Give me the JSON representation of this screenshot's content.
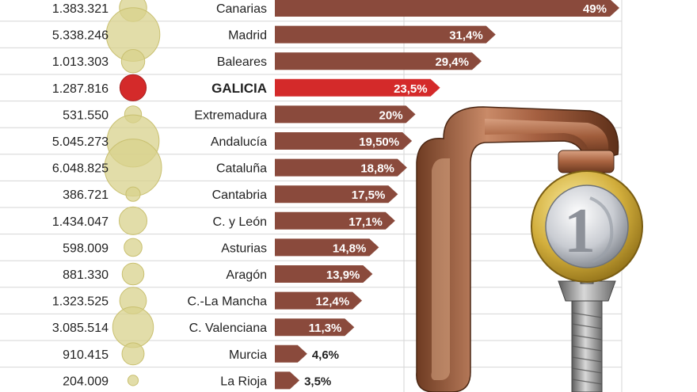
{
  "colors": {
    "bar": "#8a4a3c",
    "highlight": "#d42a2a",
    "bubble": "#d8d28c",
    "bubble_stroke": "#c9c070",
    "grid": "#d6d6d6"
  },
  "illustration": {
    "clamp_icon": "c-clamp-icon",
    "coin_icon": "euro-coin-icon",
    "coin_text": "1"
  },
  "chart_data": {
    "type": "bar",
    "orientation": "horizontal",
    "title": "",
    "xlabel": "",
    "ylabel": "",
    "xlim": [
      0,
      49
    ],
    "grid": true,
    "highlight": "GALICIA",
    "rows": [
      {
        "region": "Canarias",
        "population": "1.383.321",
        "value": 49,
        "label": "49%"
      },
      {
        "region": "Madrid",
        "population": "5.338.246",
        "value": 31.4,
        "label": "31,4%"
      },
      {
        "region": "Baleares",
        "population": "1.013.303",
        "value": 29.4,
        "label": "29,4%"
      },
      {
        "region": "GALICIA",
        "population": "1.287.816",
        "value": 23.5,
        "label": "23,5%"
      },
      {
        "region": "Extremadura",
        "population": "531.550",
        "value": 20,
        "label": "20%"
      },
      {
        "region": "Andalucía",
        "population": "5.045.273",
        "value": 19.5,
        "label": "19,50%"
      },
      {
        "region": "Cataluña",
        "population": "6.048.825",
        "value": 18.8,
        "label": "18,8%"
      },
      {
        "region": "Cantabria",
        "population": "386.721",
        "value": 17.5,
        "label": "17,5%"
      },
      {
        "region": "C. y León",
        "population": "1.434.047",
        "value": 17.1,
        "label": "17,1%"
      },
      {
        "region": "Asturias",
        "population": "598.009",
        "value": 14.8,
        "label": "14,8%"
      },
      {
        "region": "Aragón",
        "population": "881.330",
        "value": 13.9,
        "label": "13,9%"
      },
      {
        "region": "C.-La Mancha",
        "population": "1.323.525",
        "value": 12.4,
        "label": "12,4%"
      },
      {
        "region": "C. Valenciana",
        "population": "3.085.514",
        "value": 11.3,
        "label": "11,3%"
      },
      {
        "region": "Murcia",
        "population": "910.415",
        "value": 4.6,
        "label": "4,6%"
      },
      {
        "region": "La Rioja",
        "population": "204.009",
        "value": 3.5,
        "label": "3,5%"
      }
    ]
  }
}
